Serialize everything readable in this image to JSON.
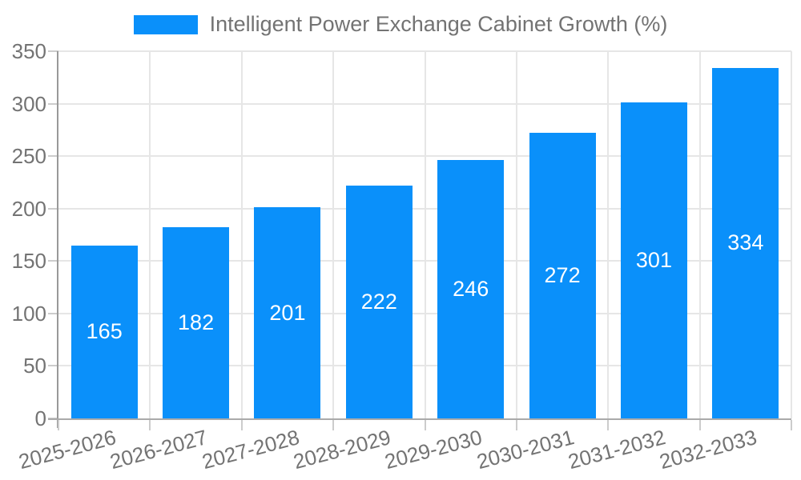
{
  "chart_data": {
    "type": "bar",
    "title": "Intelligent Power Exchange Cabinet Growth (%)",
    "categories": [
      "2025-2026",
      "2026-2027",
      "2027-2028",
      "2028-2029",
      "2029-2030",
      "2030-2031",
      "2031-2032",
      "2032-2033"
    ],
    "values": [
      165,
      182,
      201,
      222,
      246,
      272,
      301,
      334
    ],
    "series": [
      {
        "name": "Intelligent Power Exchange Cabinet Growth (%)",
        "values": [
          165,
          182,
          201,
          222,
          246,
          272,
          301,
          334
        ]
      }
    ],
    "xlabel": "",
    "ylabel": "",
    "ylim": [
      0,
      350
    ],
    "yticks": [
      0,
      50,
      100,
      150,
      200,
      250,
      300,
      350
    ],
    "grid": true,
    "legend_position": "top",
    "x_tick_rotation_deg": -15,
    "colors": {
      "bar": "#0a90fa",
      "value_label": "#ffffff",
      "axis_label": "#737373",
      "gridline": "#e6e6e6",
      "tick": "#cccccc",
      "y_axis_line": "#999999",
      "x_axis_line": "#aaaaaa",
      "background": "#ffffff"
    }
  }
}
